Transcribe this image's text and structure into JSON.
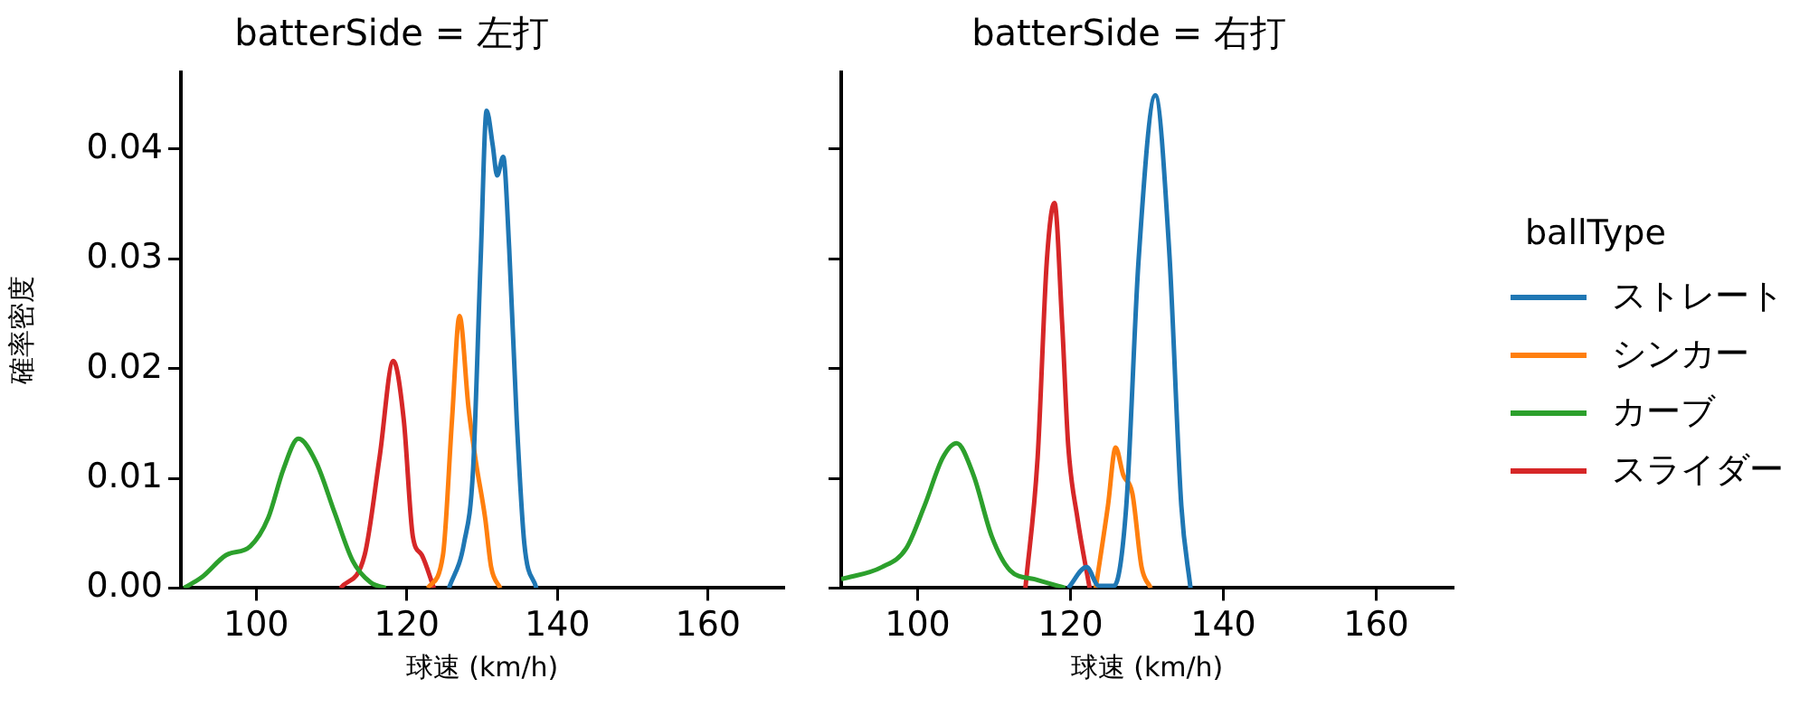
{
  "chart_data": [
    {
      "type": "line",
      "title": "batterSide = 左打",
      "xlabel": "球速 (km/h)",
      "ylabel": "確率密度",
      "xlim": [
        90,
        170
      ],
      "xticks": [
        100,
        120,
        140,
        160
      ],
      "ylim": [
        0,
        0.047
      ],
      "yticks": [
        {
          "value": 0,
          "label": "0.00"
        },
        {
          "value": 0.01,
          "label": "0.01"
        },
        {
          "value": 0.02,
          "label": "0.02"
        },
        {
          "value": 0.03,
          "label": "0.03"
        },
        {
          "value": 0.04,
          "label": "0.04"
        }
      ],
      "grid": false,
      "legend": false,
      "marker": "none",
      "line_style": "solid",
      "series": [
        {
          "color": "#1f77b4",
          "x": [
            125.6,
            127.6,
            128.8,
            129.8,
            130.6,
            131.4,
            132,
            132.8,
            133.6,
            134.6,
            135.6,
            137.2
          ],
          "values": [
            0,
            0.0041,
            0.0108,
            0.0298,
            0.0435,
            0.0404,
            0.0376,
            0.0393,
            0.0309,
            0.0153,
            0.0041,
            0
          ]
        },
        {
          "color": "#ff7f0e",
          "x": [
            122.8,
            124.8,
            126,
            127,
            128.2,
            129.2,
            130.4,
            131.2,
            132.4
          ],
          "values": [
            0,
            0.003,
            0.0153,
            0.0248,
            0.0164,
            0.0114,
            0.0064,
            0.0019,
            0
          ]
        },
        {
          "color": "#2ca02c",
          "x": [
            90.4,
            92.8,
            96,
            99.2,
            101.6,
            103.6,
            105.6,
            108,
            110.4,
            112.8,
            115.2,
            117.2
          ],
          "values": [
            0,
            0.001,
            0.003,
            0.0038,
            0.0064,
            0.0108,
            0.0136,
            0.0114,
            0.0069,
            0.0025,
            0.0005,
            0
          ]
        },
        {
          "color": "#d62728",
          "x": [
            111.2,
            114.4,
            116.4,
            118.2,
            119.6,
            120.8,
            122,
            123.6
          ],
          "values": [
            0,
            0.003,
            0.012,
            0.0207,
            0.0153,
            0.0047,
            0.003,
            0
          ]
        }
      ]
    },
    {
      "type": "line",
      "title": "batterSide = 右打",
      "xlabel": "球速 (km/h)",
      "legend_title": "ballType",
      "xlim": [
        90,
        170
      ],
      "xticks": [
        100,
        120,
        140,
        160
      ],
      "ylim": [
        0,
        0.047
      ],
      "yticks": [
        {
          "value": 0,
          "label": null
        },
        {
          "value": 0.01,
          "label": null
        },
        {
          "value": 0.02,
          "label": null
        },
        {
          "value": 0.03,
          "label": null
        },
        {
          "value": 0.04,
          "label": null
        }
      ],
      "tick_labels": "x",
      "grid": false,
      "legend": "right",
      "marker": "none",
      "line_style": "solid",
      "series": [
        {
          "name": "ストレート",
          "color": "#1f77b4",
          "x": [
            119.7,
            122.1,
            123.7,
            125.7,
            127.3,
            128.9,
            131.1,
            132.9,
            134.5,
            135.7
          ],
          "values": [
            0,
            0.0019,
            0.0002,
            0.0002,
            0.0075,
            0.0298,
            0.0449,
            0.0309,
            0.0075,
            0
          ]
        },
        {
          "name": "シンカー",
          "color": "#ff7f0e",
          "x": [
            123.3,
            124.9,
            125.9,
            126.9,
            128.1,
            129.3,
            130.5
          ],
          "values": [
            0,
            0.0075,
            0.0128,
            0.0103,
            0.0086,
            0.0019,
            0
          ]
        },
        {
          "name": "カーブ",
          "color": "#2ca02c",
          "x": [
            90,
            95.3,
            98.5,
            100.9,
            103.3,
            105.1,
            107.3,
            109.7,
            112.1,
            115.3,
            119.3
          ],
          "values": [
            0.0008,
            0.0019,
            0.0036,
            0.0075,
            0.0119,
            0.0132,
            0.0103,
            0.0047,
            0.0016,
            0.0008,
            0
          ]
        },
        {
          "name": "スライダー",
          "color": "#d62728",
          "x": [
            114.1,
            115.7,
            116.9,
            117.9,
            118.9,
            119.7,
            120.9,
            122.5
          ],
          "values": [
            0,
            0.0119,
            0.0298,
            0.0351,
            0.0242,
            0.013,
            0.0064,
            0
          ]
        }
      ]
    }
  ]
}
